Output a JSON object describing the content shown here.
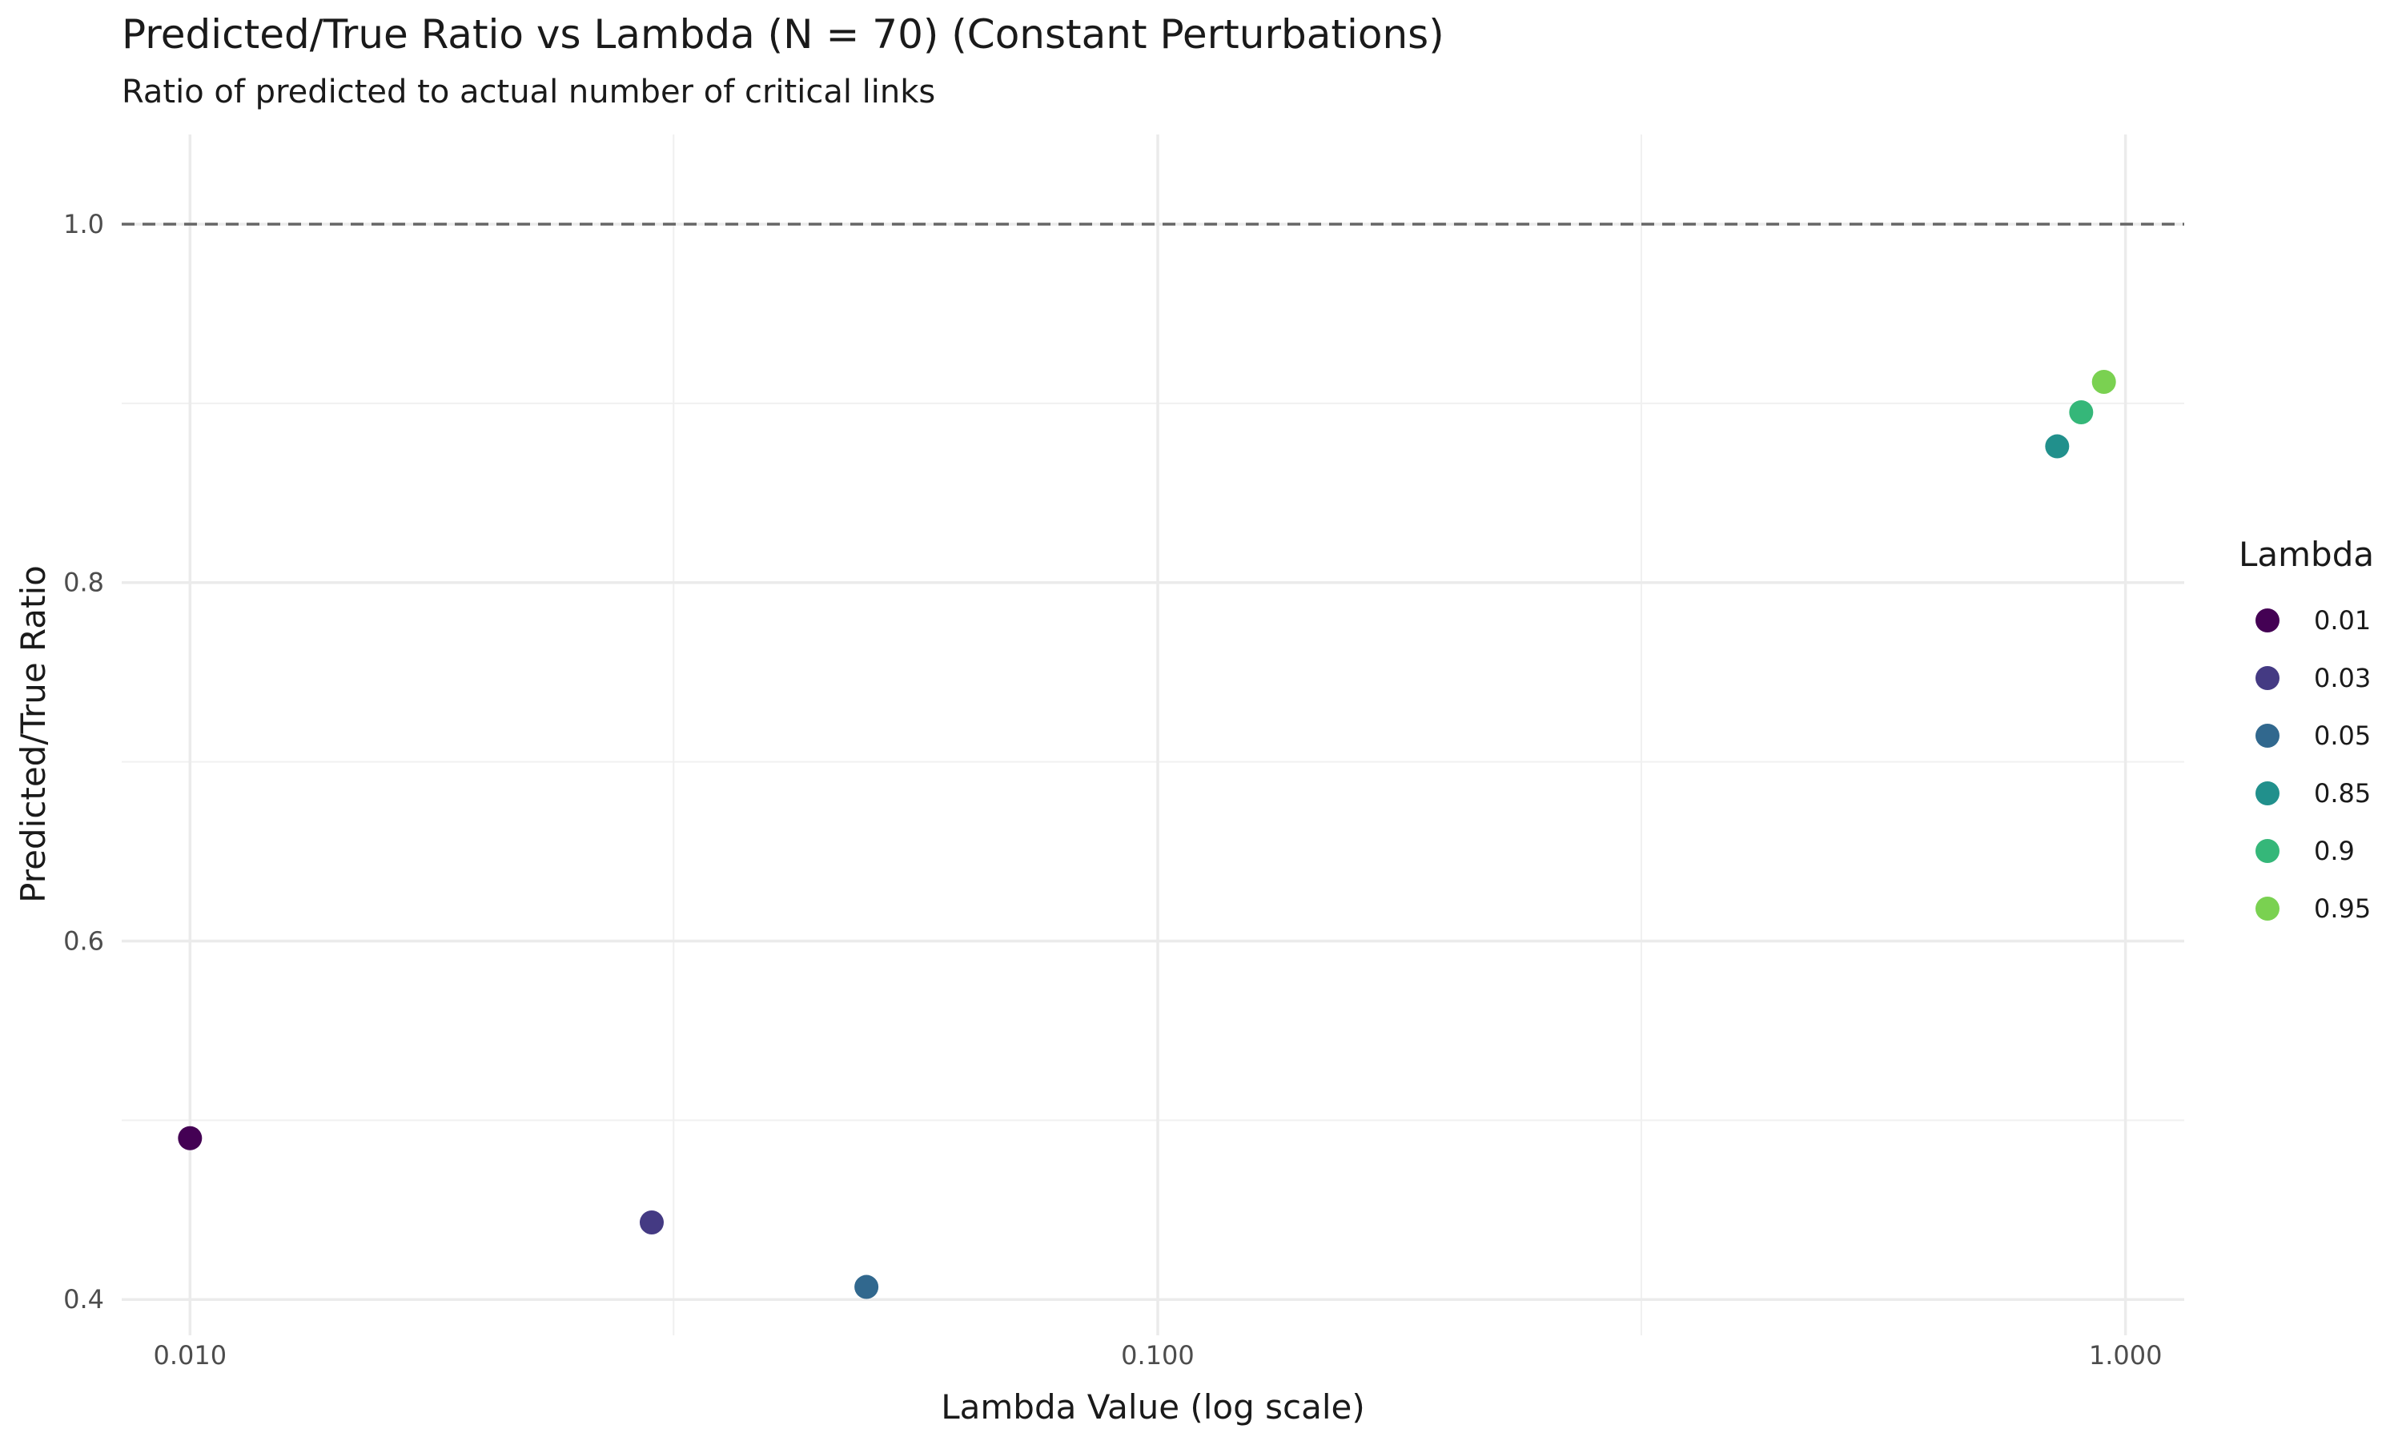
{
  "chart_data": {
    "type": "scatter",
    "title": "Predicted/True Ratio vs Lambda (N = 70) (Constant Perturbations)",
    "subtitle": "Ratio of predicted to actual number of critical links",
    "xlabel": "Lambda Value (log scale)",
    "ylabel": "Predicted/True Ratio",
    "x_scale": "log10",
    "xlim": [
      0.0085,
      1.15
    ],
    "ylim": [
      0.38,
      1.05
    ],
    "x_ticks": [
      0.01,
      0.1,
      1.0
    ],
    "x_tick_labels": [
      "0.010",
      "0.100",
      "1.000"
    ],
    "x_minor_ticks": [
      0.0316,
      0.316
    ],
    "y_ticks": [
      0.4,
      0.6,
      0.8,
      1.0
    ],
    "y_tick_labels": [
      "0.4",
      "0.6",
      "0.8",
      "1.0"
    ],
    "y_minor_ticks": [
      0.5,
      0.7,
      0.9
    ],
    "grid": true,
    "reference_line": {
      "y": 1.0,
      "style": "dashed",
      "color": "#666666"
    },
    "legend": {
      "title": "Lambda",
      "position": "right"
    },
    "points": [
      {
        "label": "0.01",
        "x": 0.01,
        "y": 0.49,
        "color": "#440154"
      },
      {
        "label": "0.03",
        "x": 0.03,
        "y": 0.443,
        "color": "#443A83"
      },
      {
        "label": "0.05",
        "x": 0.05,
        "y": 0.407,
        "color": "#31688E"
      },
      {
        "label": "0.85",
        "x": 0.85,
        "y": 0.876,
        "color": "#21908C"
      },
      {
        "label": "0.9",
        "x": 0.9,
        "y": 0.895,
        "color": "#35B779"
      },
      {
        "label": "0.95",
        "x": 0.95,
        "y": 0.912,
        "color": "#7AD151"
      }
    ]
  }
}
